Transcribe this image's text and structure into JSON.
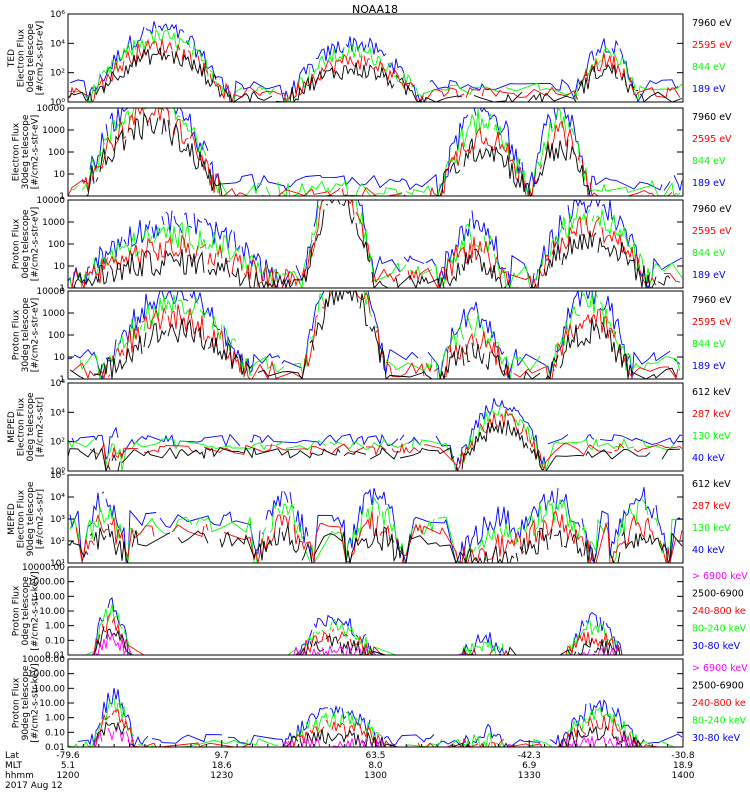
{
  "title": "NOAA18",
  "colors": {
    "blue": "#0000ff",
    "red": "#ff0000",
    "green": "#00ff00",
    "black": "#000000",
    "magenta": "#ff00ff"
  },
  "chart_data": [
    {
      "type": "line",
      "ylabel": [
        "TED",
        "Electron Flux",
        "0deg telescope",
        "[#/cm2-s-str-eV]"
      ],
      "yscale": "log",
      "ylim": [
        1,
        1000000
      ],
      "yticks": [
        "10⁰",
        "10²",
        "10⁴",
        "10⁶"
      ],
      "legend": [
        {
          "text": "7960 eV",
          "color": "black"
        },
        {
          "text": "2595 eV",
          "color": "red"
        },
        {
          "text": "844 eV",
          "color": "green"
        },
        {
          "text": "189 eV",
          "color": "blue"
        }
      ]
    },
    {
      "type": "line",
      "ylabel": [
        "Electron Flux",
        "30deg telescope",
        "[#/cm2-s-str-eV]"
      ],
      "yscale": "log",
      "ylim": [
        1,
        10000
      ],
      "yticks": [
        "1",
        "10",
        "100",
        "1000",
        "10000"
      ],
      "legend": [
        {
          "text": "7960 eV",
          "color": "black"
        },
        {
          "text": "2595 eV",
          "color": "red"
        },
        {
          "text": "844 eV",
          "color": "green"
        },
        {
          "text": "189 eV",
          "color": "blue"
        }
      ]
    },
    {
      "type": "line",
      "ylabel": [
        "Proton Flux",
        "0deg telescope",
        "[#/cm2-s-str-eV]"
      ],
      "yscale": "log",
      "ylim": [
        1,
        10000
      ],
      "yticks": [
        "1",
        "10",
        "100",
        "1000",
        "10000"
      ],
      "legend": [
        {
          "text": "7960 eV",
          "color": "black"
        },
        {
          "text": "2595 eV",
          "color": "red"
        },
        {
          "text": "844 eV",
          "color": "green"
        },
        {
          "text": "189 eV",
          "color": "blue"
        }
      ]
    },
    {
      "type": "line",
      "ylabel": [
        "Proton Flux",
        "30deg telescope",
        "[#/cm2-s-str-eV]"
      ],
      "yscale": "log",
      "ylim": [
        1,
        10000
      ],
      "yticks": [
        "1",
        "10",
        "100",
        "1000",
        "10000"
      ],
      "legend": [
        {
          "text": "7960 eV",
          "color": "black"
        },
        {
          "text": "2595 eV",
          "color": "red"
        },
        {
          "text": "844 eV",
          "color": "green"
        },
        {
          "text": "189 eV",
          "color": "blue"
        }
      ]
    },
    {
      "type": "line",
      "ylabel": [
        "MEPED",
        "Electron Flux",
        "0deg telescope",
        "[#/cm2-s-str]"
      ],
      "yscale": "log",
      "ylim": [
        1,
        1000000
      ],
      "yticks": [
        "10⁰",
        "10²",
        "10⁴",
        "10⁶"
      ],
      "legend": [
        {
          "text": "612 keV",
          "color": "black"
        },
        {
          "text": "287 keV",
          "color": "red"
        },
        {
          "text": "130 keV",
          "color": "green"
        },
        {
          "text": "40 keV",
          "color": "blue"
        }
      ]
    },
    {
      "type": "line",
      "ylabel": [
        "MEPED",
        "Electron Flux",
        "90deg telescope",
        "[#/cm2-s-str]"
      ],
      "yscale": "log",
      "ylim": [
        10,
        100000
      ],
      "yticks": [
        "10¹",
        "10²",
        "10³",
        "10⁴",
        "10⁵"
      ],
      "legend": [
        {
          "text": "612 keV",
          "color": "black"
        },
        {
          "text": "287 keV",
          "color": "red"
        },
        {
          "text": "130 keV",
          "color": "green"
        },
        {
          "text": "40 keV",
          "color": "blue"
        }
      ]
    },
    {
      "type": "line",
      "ylabel": [
        "Proton Flux",
        "0deg telescope",
        "[#/cm2-s-str-keV]"
      ],
      "yscale": "log",
      "ylim": [
        0.01,
        10000
      ],
      "yticks": [
        "0.01",
        "0.10",
        "1.00",
        "10.00",
        "100.00",
        "1000.00",
        "10000.00"
      ],
      "legend": [
        {
          "text": "> 6900 keV",
          "color": "magenta"
        },
        {
          "text": "2500-6900",
          "color": "black"
        },
        {
          "text": "240-800 ke",
          "color": "red"
        },
        {
          "text": "80-240 keV",
          "color": "green"
        },
        {
          "text": "30-80 keV",
          "color": "blue"
        }
      ]
    },
    {
      "type": "line",
      "ylabel": [
        "Proton Flux",
        "90deg telescope",
        "[#/cm2-s-str-keV]"
      ],
      "yscale": "log",
      "ylim": [
        0.01,
        10000
      ],
      "yticks": [
        "0.01",
        "0.10",
        "1.00",
        "10.00",
        "100.00",
        "1000.00",
        "10000.00"
      ],
      "legend": [
        {
          "text": "> 6900 keV",
          "color": "magenta"
        },
        {
          "text": "2500-6900",
          "color": "black"
        },
        {
          "text": "240-800 ke",
          "color": "red"
        },
        {
          "text": "80-240 keV",
          "color": "green"
        },
        {
          "text": "30-80 keV",
          "color": "blue"
        }
      ]
    }
  ],
  "xaxis": {
    "row_labels": [
      "Lat",
      "MLT",
      "hhmm"
    ],
    "ticks": [
      {
        "lat": "-79.6",
        "mlt": "5.1",
        "hhmm": "1200"
      },
      {
        "lat": "9.7",
        "mlt": "18.6",
        "hhmm": "1230"
      },
      {
        "lat": "63.5",
        "mlt": "8.0",
        "hhmm": "1300"
      },
      {
        "lat": "-42.3",
        "mlt": "6.9",
        "hhmm": "1330"
      },
      {
        "lat": "-30.8",
        "mlt": "18.9",
        "hhmm": "1400"
      }
    ],
    "date": "2017 Aug 12"
  }
}
